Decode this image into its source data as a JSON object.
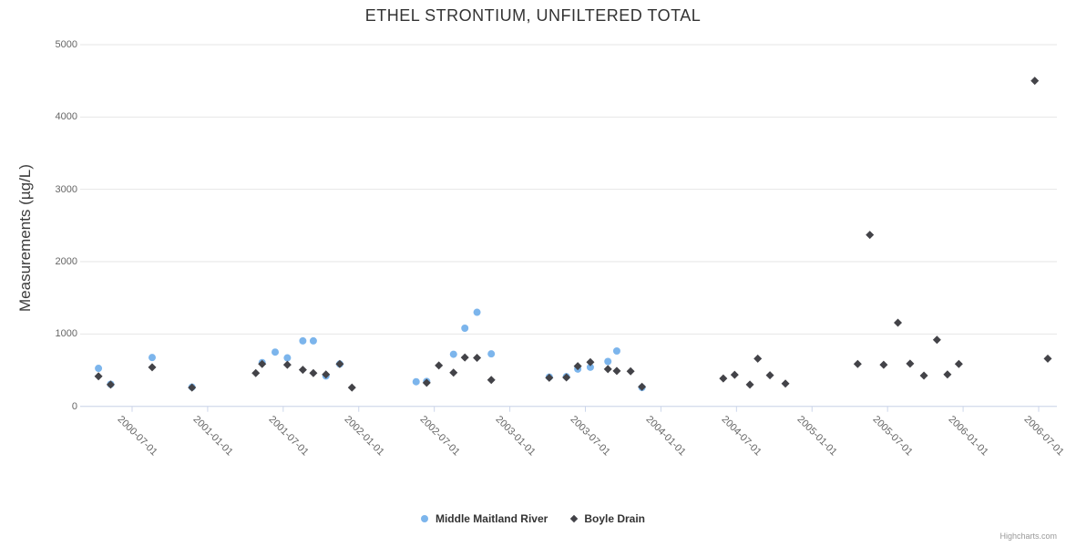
{
  "chart": {
    "credits": "Highcharts.com"
  },
  "chart_data": {
    "type": "scatter",
    "title": "ETHEL STRONTIUM, UNFILTERED TOTAL",
    "xlabel": "",
    "ylabel": "Measurements (µg/L)",
    "ylim": [
      0,
      5000
    ],
    "y_ticks": [
      0,
      1000,
      2000,
      3000,
      4000,
      5000
    ],
    "x_ticks": [
      "2000-07-01",
      "2001-01-01",
      "2001-07-01",
      "2002-01-01",
      "2002-07-01",
      "2003-01-01",
      "2003-07-01",
      "2004-01-01",
      "2004-07-01",
      "2005-01-01",
      "2005-07-01",
      "2006-01-01",
      "2006-07-01"
    ],
    "x_tick_rotation": 45,
    "grid": "horizontal",
    "legend_position": "bottom",
    "point_schema": [
      "date",
      "value"
    ],
    "series": [
      {
        "name": "Middle Maitland River",
        "color": "#7cb5ec",
        "marker": "circle",
        "points": [
          [
            "2000-04-11",
            525
          ],
          [
            "2000-05-10",
            305
          ],
          [
            "2000-08-19",
            675
          ],
          [
            "2000-11-24",
            265
          ],
          [
            "2001-05-11",
            605
          ],
          [
            "2001-06-12",
            750
          ],
          [
            "2001-07-11",
            670
          ],
          [
            "2001-08-18",
            905
          ],
          [
            "2001-09-13",
            905
          ],
          [
            "2001-10-13",
            420
          ],
          [
            "2001-11-16",
            585
          ],
          [
            "2002-05-18",
            340
          ],
          [
            "2002-06-13",
            345
          ],
          [
            "2002-08-17",
            720
          ],
          [
            "2002-09-14",
            1080
          ],
          [
            "2002-10-13",
            1300
          ],
          [
            "2002-11-17",
            725
          ],
          [
            "2003-04-05",
            405
          ],
          [
            "2003-05-16",
            410
          ],
          [
            "2003-06-13",
            515
          ],
          [
            "2003-07-13",
            540
          ],
          [
            "2003-08-25",
            620
          ],
          [
            "2003-09-16",
            765
          ],
          [
            "2003-11-16",
            260
          ]
        ]
      },
      {
        "name": "Boyle Drain",
        "color": "#434348",
        "marker": "diamond",
        "points": [
          [
            "2000-04-11",
            415
          ],
          [
            "2000-05-10",
            300
          ],
          [
            "2000-08-19",
            540
          ],
          [
            "2000-11-24",
            260
          ],
          [
            "2001-04-26",
            460
          ],
          [
            "2001-05-11",
            585
          ],
          [
            "2001-07-11",
            575
          ],
          [
            "2001-08-18",
            505
          ],
          [
            "2001-09-13",
            460
          ],
          [
            "2001-10-13",
            440
          ],
          [
            "2001-11-16",
            585
          ],
          [
            "2001-12-15",
            260
          ],
          [
            "2002-06-13",
            325
          ],
          [
            "2002-07-12",
            565
          ],
          [
            "2002-08-17",
            465
          ],
          [
            "2002-09-14",
            675
          ],
          [
            "2002-10-13",
            670
          ],
          [
            "2002-11-17",
            365
          ],
          [
            "2003-04-05",
            395
          ],
          [
            "2003-05-16",
            400
          ],
          [
            "2003-06-13",
            555
          ],
          [
            "2003-07-13",
            610
          ],
          [
            "2003-08-25",
            515
          ],
          [
            "2003-09-16",
            490
          ],
          [
            "2003-10-19",
            485
          ],
          [
            "2003-11-16",
            270
          ],
          [
            "2004-05-30",
            385
          ],
          [
            "2004-06-27",
            435
          ],
          [
            "2004-08-03",
            300
          ],
          [
            "2004-08-22",
            660
          ],
          [
            "2004-09-21",
            430
          ],
          [
            "2004-10-28",
            315
          ],
          [
            "2005-04-20",
            585
          ],
          [
            "2005-05-19",
            2370
          ],
          [
            "2005-06-22",
            575
          ],
          [
            "2005-07-26",
            1155
          ],
          [
            "2005-08-25",
            590
          ],
          [
            "2005-09-28",
            425
          ],
          [
            "2005-10-29",
            920
          ],
          [
            "2005-11-24",
            440
          ],
          [
            "2005-12-21",
            585
          ],
          [
            "2006-06-22",
            4500
          ],
          [
            "2006-07-23",
            660
          ]
        ]
      }
    ]
  }
}
